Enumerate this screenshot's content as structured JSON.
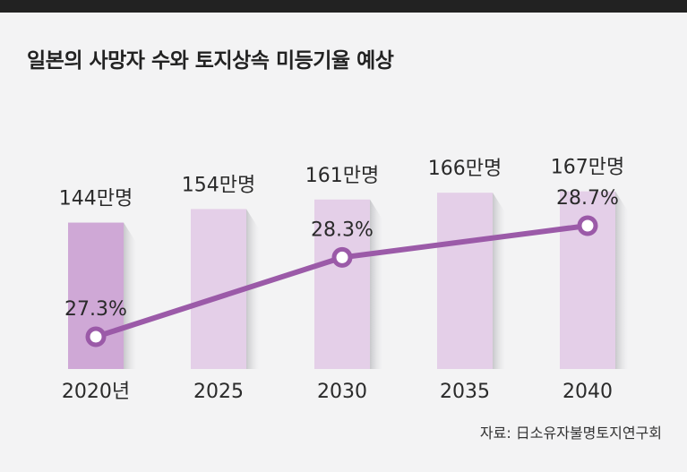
{
  "title": "일본의 사망자 수와 토지상속 미등기율 예상",
  "source": "자료: 日소유자불명토지연구회",
  "colors": {
    "bar_first": "#cfa8d6",
    "bar": "#e4cfe8",
    "line": "#9b5aa8",
    "marker_fill": "#ffffff",
    "background": "#f3f3f4",
    "top_bar": "#222222"
  },
  "chart_data": {
    "type": "bar+line",
    "title": "일본의 사망자 수와 토지상속 미등기율 예상",
    "categories": [
      "2020년",
      "2025",
      "2030",
      "2035",
      "2040"
    ],
    "series": [
      {
        "type": "bar",
        "values": [
          144,
          154,
          161,
          166,
          167
        ],
        "labels": [
          "144만명",
          "154만명",
          "161만명",
          "166만명",
          "167만명"
        ]
      },
      {
        "type": "line",
        "values": [
          27.3,
          null,
          28.3,
          null,
          28.7
        ],
        "labels": [
          "27.3%",
          "",
          "28.3%",
          "",
          "28.7%"
        ]
      }
    ],
    "grid": false,
    "legend": "none"
  }
}
